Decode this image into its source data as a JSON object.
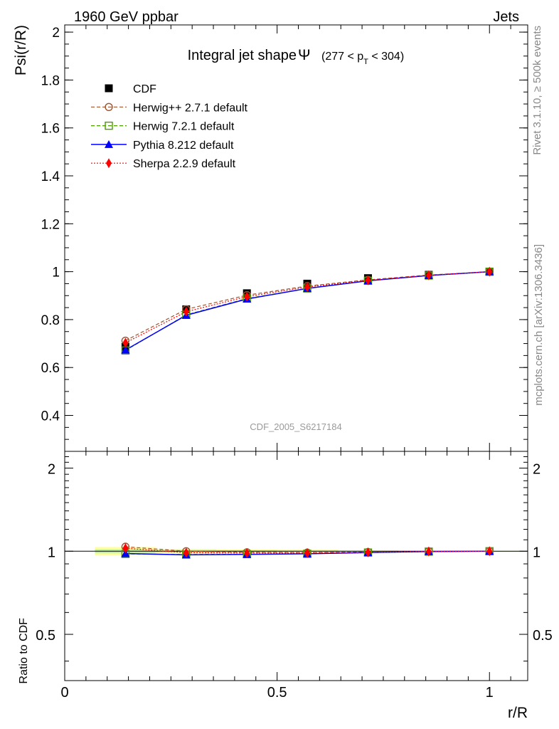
{
  "header": {
    "left": "1960 GeV ppbar",
    "right": "Jets"
  },
  "side_labels": {
    "top": "Rivet 3.1.10, ≥ 500k events",
    "bottom": "mcplots.cern.ch [arXiv:1306.3436]"
  },
  "watermark": "CDF_2005_S6217184",
  "colors": {
    "cdf": "#000000",
    "herwigpp": "#a0522d",
    "herwig7": "#4c9a00",
    "pythia": "#0000ff",
    "sherpa": "#ff0000",
    "band_outer": "#ffff99",
    "band_inner": "#bff0a0"
  },
  "chart_data": [
    {
      "type": "line",
      "panel": "main",
      "title": "Integral jet shape",
      "title_symbol": "Ψ",
      "title_range": {
        "open": "(277 < p",
        "sub": "T",
        "close": " < 304)"
      },
      "ylabel": "Psi(r/R)",
      "xlabel": "r/R",
      "xlim": [
        0,
        1.09
      ],
      "ylim": [
        0.25,
        2.03
      ],
      "yticks": [
        "0.4",
        "0.6",
        "0.8",
        "1",
        "1.2",
        "1.4",
        "1.6",
        "1.8",
        "2"
      ],
      "ytick_values": [
        0.4,
        0.6,
        0.8,
        1.0,
        1.2,
        1.4,
        1.6,
        1.8,
        2.0
      ],
      "x": [
        0.143,
        0.286,
        0.429,
        0.571,
        0.714,
        0.857,
        1.0
      ],
      "series": [
        {
          "name": "CDF",
          "key": "cdf",
          "values": [
            0.686,
            0.843,
            0.91,
            0.95,
            0.973,
            0.987,
            1.0
          ]
        },
        {
          "name": "Herwig++ 2.7.1 default",
          "key": "herwigpp",
          "values": [
            0.712,
            0.843,
            0.902,
            0.94,
            0.966,
            0.986,
            1.0
          ]
        },
        {
          "name": "Herwig 7.2.1 default",
          "key": "herwig7",
          "values": [
            0.671,
            0.82,
            0.888,
            0.93,
            0.962,
            0.984,
            1.0
          ]
        },
        {
          "name": "Pythia 8.212 default",
          "key": "pythia",
          "values": [
            0.673,
            0.818,
            0.886,
            0.93,
            0.962,
            0.984,
            1.0
          ]
        },
        {
          "name": "Sherpa 2.2.9 default",
          "key": "sherpa",
          "values": [
            0.703,
            0.833,
            0.896,
            0.936,
            0.964,
            0.985,
            1.0
          ]
        }
      ],
      "legend_position": "top-left"
    },
    {
      "type": "line",
      "panel": "ratio",
      "ylabel": "Ratio to CDF",
      "xlabel": "r/R",
      "xlim": [
        0,
        1.09
      ],
      "ylim": [
        0.34,
        2.3
      ],
      "yscale": "log",
      "yticks": [
        "0.5",
        "1",
        "2"
      ],
      "ytick_values": [
        0.5,
        1,
        2
      ],
      "xticks": [
        "0",
        "0.5",
        "1"
      ],
      "xtick_values": [
        0,
        0.5,
        1
      ],
      "x": [
        0.143,
        0.286,
        0.429,
        0.571,
        0.714,
        0.857,
        1.0
      ],
      "band": {
        "x_edges": [
          0.071,
          0.214,
          0.357,
          0.5,
          0.643,
          0.786,
          0.929,
          1.071
        ],
        "outer_lo": [
          0.965,
          0.98,
          0.985,
          0.988,
          0.992,
          0.995,
          0.998
        ],
        "outer_hi": [
          1.035,
          1.02,
          1.015,
          1.012,
          1.008,
          1.005,
          1.002
        ],
        "inner_lo": [
          0.985,
          0.99,
          0.992,
          0.994,
          0.996,
          0.998,
          0.999
        ],
        "inner_hi": [
          1.015,
          1.01,
          1.008,
          1.006,
          1.004,
          1.002,
          1.001
        ]
      },
      "series": [
        {
          "name": "Herwig++ 2.7.1 default",
          "key": "herwigpp",
          "values": [
            1.038,
            1.0,
            0.991,
            0.989,
            0.993,
            0.999,
            1.0
          ]
        },
        {
          "name": "Herwig 7.2.1 default",
          "key": "herwig7",
          "values": [
            0.978,
            0.973,
            0.976,
            0.979,
            0.989,
            0.997,
            1.0
          ]
        },
        {
          "name": "Pythia 8.212 default",
          "key": "pythia",
          "values": [
            0.981,
            0.97,
            0.974,
            0.979,
            0.989,
            0.997,
            1.0
          ]
        },
        {
          "name": "Sherpa 2.2.9 default",
          "key": "sherpa",
          "values": [
            1.025,
            0.988,
            0.985,
            0.985,
            0.991,
            0.998,
            1.0
          ]
        }
      ]
    }
  ]
}
